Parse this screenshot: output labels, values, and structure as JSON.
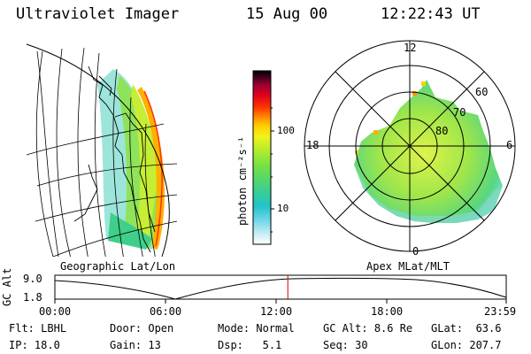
{
  "header": {
    "instrument": "Ultraviolet Imager",
    "date": "15 Aug 00",
    "time": "12:22:43 UT"
  },
  "colorbar": {
    "unit_label": "photon cm⁻²s⁻¹",
    "ticks": [
      "100",
      "10"
    ]
  },
  "geo_panel": {
    "caption": "Geographic Lat/Lon"
  },
  "polar_panel": {
    "caption": "Apex MLat/MLT",
    "mlt_labels": [
      "12",
      "18",
      "6",
      "0"
    ],
    "lat_labels": [
      "60",
      "70",
      "80"
    ]
  },
  "altitude_plot": {
    "ylabel": "GC Alt",
    "y_ticks": [
      "9.0",
      "1.8"
    ],
    "x_ticks": [
      "00:00",
      "06:00",
      "12:00",
      "18:00",
      "23:59"
    ],
    "current_time_marker": "12:22:43",
    "marker_color": "#cc0000"
  },
  "status": {
    "flt": {
      "label": "Flt:",
      "value": "LBHL"
    },
    "ip": {
      "label": "IP:",
      "value": "18.0"
    },
    "door": {
      "label": "Door:",
      "value": "Open"
    },
    "gain": {
      "label": "Gain:",
      "value": "13"
    },
    "mode": {
      "label": "Mode:",
      "value": "Normal"
    },
    "dsp": {
      "label": "Dsp:",
      "value": "5.1"
    },
    "gcalt": {
      "label": "GC Alt:",
      "value": "8.6 Re"
    },
    "seq": {
      "label": "Seq:",
      "value": "30"
    },
    "glat": {
      "label": "GLat:",
      "value": "63.6"
    },
    "glon": {
      "label": "GLon:",
      "value": "207.7"
    }
  }
}
